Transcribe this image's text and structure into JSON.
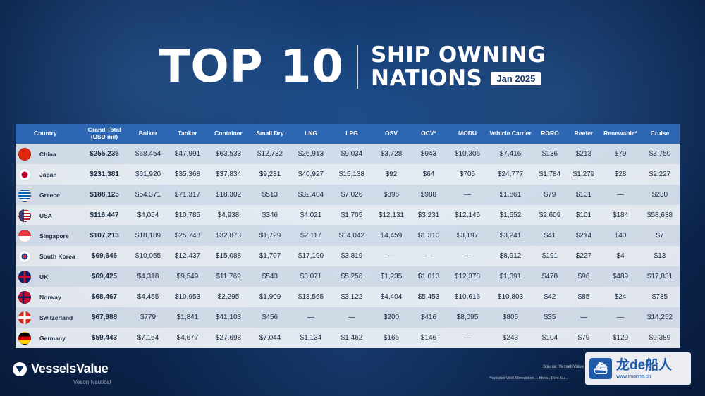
{
  "header": {
    "title": "TOP 10",
    "subtitle_line1": "SHIP OWNING",
    "subtitle_line2": "NATIONS",
    "date_badge": "Jan 2025"
  },
  "table": {
    "columns": [
      "Country",
      "Grand Total (USD mil)",
      "Bulker",
      "Tanker",
      "Container",
      "Small Dry",
      "LNG",
      "LPG",
      "OSV",
      "OCV*",
      "MODU",
      "Vehicle Carrier",
      "RORO",
      "Reefer",
      "Renewable*",
      "Cruise"
    ],
    "rows": [
      {
        "flag": "china",
        "cells": [
          "China",
          "$255,236",
          "$68,454",
          "$47,991",
          "$63,533",
          "$12,732",
          "$26,913",
          "$9,034",
          "$3,728",
          "$943",
          "$10,306",
          "$7,416",
          "$136",
          "$213",
          "$79",
          "$3,750"
        ]
      },
      {
        "flag": "japan",
        "cells": [
          "Japan",
          "$231,381",
          "$61,920",
          "$35,368",
          "$37,834",
          "$9,231",
          "$40,927",
          "$15,138",
          "$92",
          "$64",
          "$705",
          "$24,777",
          "$1,784",
          "$1,279",
          "$28",
          "$2,227"
        ]
      },
      {
        "flag": "greece",
        "cells": [
          "Greece",
          "$188,125",
          "$54,371",
          "$71,317",
          "$18,302",
          "$513",
          "$32,404",
          "$7,026",
          "$896",
          "$988",
          "—",
          "$1,861",
          "$79",
          "$131",
          "—",
          "$230"
        ]
      },
      {
        "flag": "usa",
        "cells": [
          "USA",
          "$116,447",
          "$4,054",
          "$10,785",
          "$4,938",
          "$346",
          "$4,021",
          "$1,705",
          "$12,131",
          "$3,231",
          "$12,145",
          "$1,552",
          "$2,609",
          "$101",
          "$184",
          "$58,638"
        ]
      },
      {
        "flag": "singapore",
        "cells": [
          "Singapore",
          "$107,213",
          "$18,189",
          "$25,748",
          "$32,873",
          "$1,729",
          "$2,117",
          "$14,042",
          "$4,459",
          "$1,310",
          "$3,197",
          "$3,241",
          "$41",
          "$214",
          "$40",
          "$7"
        ]
      },
      {
        "flag": "korea",
        "cells": [
          "South Korea",
          "$69,646",
          "$10,055",
          "$12,437",
          "$15,088",
          "$1,707",
          "$17,190",
          "$3,819",
          "—",
          "—",
          "—",
          "$8,912",
          "$191",
          "$227",
          "$4",
          "$13"
        ]
      },
      {
        "flag": "uk",
        "cells": [
          "UK",
          "$69,425",
          "$4,318",
          "$9,549",
          "$11,769",
          "$543",
          "$3,071",
          "$5,256",
          "$1,235",
          "$1,013",
          "$12,378",
          "$1,391",
          "$478",
          "$96",
          "$489",
          "$17,831"
        ]
      },
      {
        "flag": "norway",
        "cells": [
          "Norway",
          "$68,467",
          "$4,455",
          "$10,953",
          "$2,295",
          "$1,909",
          "$13,565",
          "$3,122",
          "$4,404",
          "$5,453",
          "$10,616",
          "$10,803",
          "$42",
          "$85",
          "$24",
          "$735"
        ]
      },
      {
        "flag": "switzerland",
        "cells": [
          "Switzerland",
          "$67,988",
          "$779",
          "$1,841",
          "$41,103",
          "$456",
          "—",
          "—",
          "$200",
          "$416",
          "$8,095",
          "$805",
          "$35",
          "—",
          "—",
          "$14,252"
        ]
      },
      {
        "flag": "germany",
        "cells": [
          "Germany",
          "$59,443",
          "$7,164",
          "$4,677",
          "$27,698",
          "$7,044",
          "$1,134",
          "$1,462",
          "$166",
          "$146",
          "—",
          "$243",
          "$104",
          "$79",
          "$129",
          "$9,389"
        ]
      }
    ]
  },
  "footer": {
    "logo": "VesselsValue",
    "logo_sub": "Veson Nautical",
    "source": "Source: VesselsValue",
    "footnote": "*Includes Well Stimulation, Liftboat, Dive Su..."
  },
  "watermark": {
    "title": "龙de船人",
    "url": "www.imarine.cn"
  },
  "colors": {
    "header_row": "#2d66b3",
    "background": "#0f2d5c"
  }
}
